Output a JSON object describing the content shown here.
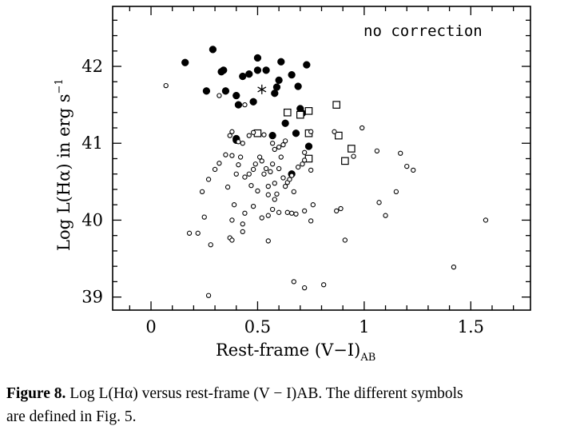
{
  "chart_data": {
    "type": "scatter",
    "title": "",
    "annotation": "no correction",
    "xlabel": "Rest-frame (V−I)",
    "xlabel_sub": "AB",
    "ylabel": "Log L(Hα) in erg s",
    "ylabel_sup": "−1",
    "xlim": [
      -0.18,
      1.78
    ],
    "ylim": [
      38.83,
      42.78
    ],
    "xticks": [
      0,
      0.5,
      1,
      1.5
    ],
    "xtick_labels": [
      "0",
      "0.5",
      "1",
      "1.5"
    ],
    "yticks": [
      39,
      40,
      41,
      42
    ],
    "ytick_labels": [
      "39",
      "40",
      "41",
      "42"
    ],
    "grid": false,
    "series": [
      {
        "marker": "filled-circle",
        "points": [
          [
            0.16,
            42.05
          ],
          [
            0.29,
            42.22
          ],
          [
            0.33,
            41.93
          ],
          [
            0.34,
            41.95
          ],
          [
            0.26,
            41.68
          ],
          [
            0.35,
            41.68
          ],
          [
            0.4,
            41.62
          ],
          [
            0.41,
            41.5
          ],
          [
            0.43,
            41.87
          ],
          [
            0.46,
            41.9
          ],
          [
            0.48,
            41.54
          ],
          [
            0.5,
            41.95
          ],
          [
            0.5,
            42.11
          ],
          [
            0.54,
            41.95
          ],
          [
            0.58,
            41.65
          ],
          [
            0.59,
            41.73
          ],
          [
            0.6,
            41.82
          ],
          [
            0.61,
            42.06
          ],
          [
            0.63,
            41.26
          ],
          [
            0.66,
            41.89
          ],
          [
            0.68,
            41.13
          ],
          [
            0.69,
            41.74
          ],
          [
            0.7,
            41.45
          ],
          [
            0.71,
            41.39
          ],
          [
            0.73,
            42.02
          ],
          [
            0.74,
            40.96
          ],
          [
            0.66,
            40.6
          ],
          [
            0.4,
            41.06
          ],
          [
            0.4,
            41.04
          ],
          [
            0.57,
            41.1
          ]
        ]
      },
      {
        "marker": "open-square",
        "points": [
          [
            0.5,
            41.13
          ],
          [
            0.64,
            41.4
          ],
          [
            0.7,
            41.37
          ],
          [
            0.74,
            41.42
          ],
          [
            0.74,
            40.8
          ],
          [
            0.74,
            41.13
          ],
          [
            0.87,
            41.5
          ],
          [
            0.88,
            41.1
          ],
          [
            0.91,
            40.77
          ],
          [
            0.94,
            40.93
          ]
        ]
      },
      {
        "marker": "star",
        "points": [
          [
            0.52,
            41.7
          ]
        ]
      },
      {
        "marker": "open-circle",
        "points": [
          [
            0.07,
            41.75
          ],
          [
            0.32,
            41.62
          ],
          [
            0.37,
            41.1
          ],
          [
            0.38,
            41.15
          ],
          [
            0.41,
            41.02
          ],
          [
            0.43,
            41.0
          ],
          [
            0.44,
            41.5
          ],
          [
            0.46,
            41.1
          ],
          [
            0.48,
            41.14
          ],
          [
            0.53,
            41.11
          ],
          [
            0.57,
            41.0
          ],
          [
            0.58,
            40.92
          ],
          [
            0.6,
            40.95
          ],
          [
            0.62,
            40.98
          ],
          [
            0.63,
            41.03
          ],
          [
            0.72,
            40.78
          ],
          [
            0.75,
            41.15
          ],
          [
            0.75,
            40.65
          ],
          [
            0.86,
            41.15
          ],
          [
            0.95,
            40.83
          ],
          [
            0.99,
            41.2
          ],
          [
            1.06,
            40.9
          ],
          [
            1.17,
            40.87
          ],
          [
            1.2,
            40.7
          ],
          [
            1.23,
            40.65
          ],
          [
            0.24,
            40.37
          ],
          [
            0.27,
            40.53
          ],
          [
            0.3,
            40.66
          ],
          [
            0.32,
            40.74
          ],
          [
            0.35,
            40.85
          ],
          [
            0.36,
            40.43
          ],
          [
            0.38,
            40.84
          ],
          [
            0.4,
            40.6
          ],
          [
            0.41,
            40.72
          ],
          [
            0.42,
            40.82
          ],
          [
            0.44,
            40.56
          ],
          [
            0.46,
            40.6
          ],
          [
            0.47,
            40.45
          ],
          [
            0.48,
            40.66
          ],
          [
            0.49,
            40.73
          ],
          [
            0.5,
            40.38
          ],
          [
            0.51,
            40.82
          ],
          [
            0.52,
            40.77
          ],
          [
            0.53,
            40.6
          ],
          [
            0.54,
            40.67
          ],
          [
            0.55,
            40.44
          ],
          [
            0.55,
            40.33
          ],
          [
            0.56,
            40.63
          ],
          [
            0.57,
            40.73
          ],
          [
            0.58,
            40.48
          ],
          [
            0.59,
            40.34
          ],
          [
            0.6,
            40.67
          ],
          [
            0.61,
            40.82
          ],
          [
            0.62,
            40.55
          ],
          [
            0.63,
            40.44
          ],
          [
            0.64,
            40.49
          ],
          [
            0.65,
            40.53
          ],
          [
            0.66,
            40.58
          ],
          [
            0.67,
            40.37
          ],
          [
            0.69,
            40.69
          ],
          [
            0.71,
            40.73
          ],
          [
            0.72,
            40.88
          ],
          [
            0.38,
            40.0
          ],
          [
            0.39,
            40.2
          ],
          [
            0.43,
            39.95
          ],
          [
            0.44,
            40.09
          ],
          [
            0.48,
            40.18
          ],
          [
            0.52,
            40.03
          ],
          [
            0.55,
            40.06
          ],
          [
            0.57,
            40.14
          ],
          [
            0.58,
            40.27
          ],
          [
            0.6,
            40.1
          ],
          [
            0.64,
            40.1
          ],
          [
            0.66,
            40.09
          ],
          [
            0.68,
            40.08
          ],
          [
            0.72,
            40.12
          ],
          [
            0.75,
            39.99
          ],
          [
            0.76,
            40.2
          ],
          [
            0.87,
            40.12
          ],
          [
            0.89,
            40.15
          ],
          [
            1.07,
            40.23
          ],
          [
            1.1,
            40.06
          ],
          [
            1.15,
            40.37
          ],
          [
            0.18,
            39.83
          ],
          [
            0.22,
            39.83
          ],
          [
            0.25,
            40.04
          ],
          [
            0.28,
            39.68
          ],
          [
            0.37,
            39.77
          ],
          [
            0.38,
            39.74
          ],
          [
            0.43,
            39.85
          ],
          [
            0.55,
            39.73
          ],
          [
            0.91,
            39.74
          ],
          [
            0.67,
            39.2
          ],
          [
            0.72,
            39.12
          ],
          [
            0.81,
            39.16
          ],
          [
            0.27,
            39.02
          ],
          [
            1.42,
            39.39
          ],
          [
            1.57,
            40.0
          ]
        ]
      }
    ]
  },
  "caption": {
    "figure_label": "Figure 8.",
    "text_line1": "Log L(Hα) versus rest-frame (V − I)AB. The different symbols",
    "text_line2": "are defined in Fig. 5."
  }
}
